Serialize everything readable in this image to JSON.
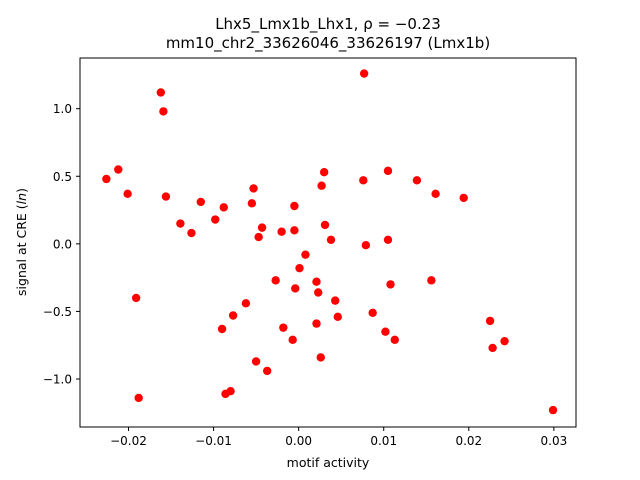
{
  "chart_data": {
    "type": "scatter",
    "title_line1": "Lhx5_Lmx1b_Lhx1, ρ = −0.23",
    "title_line2": "mm10_chr2_33626046_33626197 (Lmx1b)",
    "xlabel": "motif activity",
    "ylabel": "signal at CRE (ln)",
    "xlim": [
      -0.0257,
      0.0326
    ],
    "ylim": [
      -1.355,
      1.375
    ],
    "xticks": [
      {
        "value": -0.02,
        "label": "−0.02"
      },
      {
        "value": -0.01,
        "label": "−0.01"
      },
      {
        "value": 0.0,
        "label": "0.00"
      },
      {
        "value": 0.01,
        "label": "0.01"
      },
      {
        "value": 0.02,
        "label": "0.02"
      },
      {
        "value": 0.03,
        "label": "0.03"
      }
    ],
    "yticks": [
      {
        "value": -1.0,
        "label": "−1.0"
      },
      {
        "value": -0.5,
        "label": "−0.5"
      },
      {
        "value": 0.0,
        "label": "0.0"
      },
      {
        "value": 0.5,
        "label": "0.5"
      },
      {
        "value": 1.0,
        "label": "1.0"
      }
    ],
    "grid": false,
    "marker_color": "#ff0000",
    "points": [
      {
        "x": -0.0226,
        "y": 0.48
      },
      {
        "x": -0.0212,
        "y": 0.55
      },
      {
        "x": -0.0201,
        "y": 0.37
      },
      {
        "x": -0.0191,
        "y": -0.4
      },
      {
        "x": -0.0188,
        "y": -1.14
      },
      {
        "x": -0.0162,
        "y": 1.12
      },
      {
        "x": -0.0159,
        "y": 0.98
      },
      {
        "x": -0.0156,
        "y": 0.35
      },
      {
        "x": -0.0139,
        "y": 0.15
      },
      {
        "x": -0.0126,
        "y": 0.08
      },
      {
        "x": -0.0115,
        "y": 0.31
      },
      {
        "x": -0.0098,
        "y": 0.18
      },
      {
        "x": -0.0088,
        "y": 0.27
      },
      {
        "x": -0.009,
        "y": -0.63
      },
      {
        "x": -0.0086,
        "y": -1.11
      },
      {
        "x": -0.008,
        "y": -1.09
      },
      {
        "x": -0.0077,
        "y": -0.53
      },
      {
        "x": -0.0062,
        "y": -0.44
      },
      {
        "x": -0.0055,
        "y": 0.3
      },
      {
        "x": -0.0053,
        "y": 0.41
      },
      {
        "x": -0.005,
        "y": -0.87
      },
      {
        "x": -0.0047,
        "y": 0.05
      },
      {
        "x": -0.0043,
        "y": 0.12
      },
      {
        "x": -0.0037,
        "y": -0.94
      },
      {
        "x": -0.0027,
        "y": -0.27
      },
      {
        "x": -0.002,
        "y": 0.09
      },
      {
        "x": -0.0018,
        "y": -0.62
      },
      {
        "x": -0.0007,
        "y": -0.71
      },
      {
        "x": -0.0005,
        "y": 0.28
      },
      {
        "x": -0.0005,
        "y": 0.1
      },
      {
        "x": -0.0004,
        "y": -0.33
      },
      {
        "x": 0.0001,
        "y": -0.18
      },
      {
        "x": 0.0008,
        "y": -0.08
      },
      {
        "x": 0.0021,
        "y": -0.59
      },
      {
        "x": 0.0021,
        "y": -0.28
      },
      {
        "x": 0.0023,
        "y": -0.36
      },
      {
        "x": 0.0026,
        "y": -0.84
      },
      {
        "x": 0.0027,
        "y": 0.43
      },
      {
        "x": 0.003,
        "y": 0.53
      },
      {
        "x": 0.0031,
        "y": 0.14
      },
      {
        "x": 0.0038,
        "y": 0.03
      },
      {
        "x": 0.0043,
        "y": -0.42
      },
      {
        "x": 0.0046,
        "y": -0.54
      },
      {
        "x": 0.0077,
        "y": 1.26
      },
      {
        "x": 0.0076,
        "y": 0.47
      },
      {
        "x": 0.0079,
        "y": -0.01
      },
      {
        "x": 0.0087,
        "y": -0.51
      },
      {
        "x": 0.0102,
        "y": -0.65
      },
      {
        "x": 0.0105,
        "y": 0.54
      },
      {
        "x": 0.0105,
        "y": 0.03
      },
      {
        "x": 0.0108,
        "y": -0.3
      },
      {
        "x": 0.0113,
        "y": -0.71
      },
      {
        "x": 0.0139,
        "y": 0.47
      },
      {
        "x": 0.0156,
        "y": -0.27
      },
      {
        "x": 0.0161,
        "y": 0.37
      },
      {
        "x": 0.0194,
        "y": 0.34
      },
      {
        "x": 0.0225,
        "y": -0.57
      },
      {
        "x": 0.0228,
        "y": -0.77
      },
      {
        "x": 0.0242,
        "y": -0.72
      },
      {
        "x": 0.0299,
        "y": -1.23
      }
    ]
  }
}
